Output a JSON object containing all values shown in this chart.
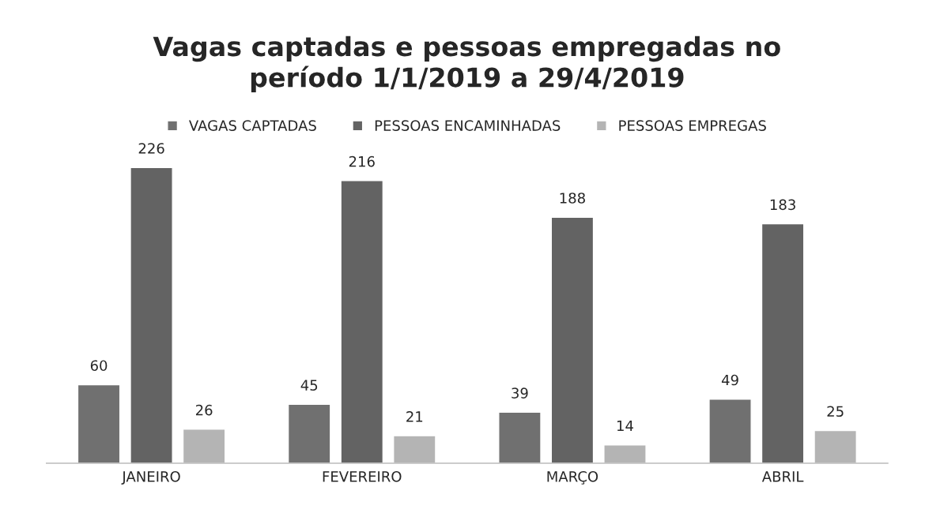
{
  "chart_data": {
    "type": "bar",
    "title": "Vagas captadas e pessoas empregadas no\nperíodo 1/1/2019 a 29/4/2019",
    "categories": [
      "JANEIRO",
      "FEVEREIRO",
      "MARÇO",
      "ABRIL"
    ],
    "series": [
      {
        "name": "VAGAS CAPTADAS",
        "color": "#707070",
        "values": [
          60,
          45,
          39,
          49
        ]
      },
      {
        "name": "PESSOAS ENCAMINHADAS",
        "color": "#636363",
        "values": [
          226,
          216,
          188,
          183
        ]
      },
      {
        "name": "PESSOAS EMPREGAS",
        "color": "#b4b4b4",
        "values": [
          26,
          21,
          14,
          25
        ]
      }
    ],
    "data_labels": true,
    "legend": "top",
    "grid": false
  }
}
